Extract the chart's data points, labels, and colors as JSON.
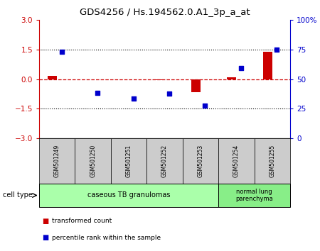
{
  "title": "GDS4256 / Hs.194562.0.A1_3p_a_at",
  "samples": [
    "GSM501249",
    "GSM501250",
    "GSM501251",
    "GSM501252",
    "GSM501253",
    "GSM501254",
    "GSM501255"
  ],
  "transformed_count": [
    0.15,
    0.0,
    0.0,
    -0.05,
    -0.65,
    0.1,
    1.4
  ],
  "percentile_rank": [
    1.4,
    -0.7,
    -1.0,
    -0.75,
    -1.35,
    0.55,
    1.48
  ],
  "red_color": "#cc0000",
  "blue_color": "#0000cc",
  "bar_width": 0.25,
  "ylim_left": [
    -3,
    3
  ],
  "yticks_left": [
    -3,
    -1.5,
    0,
    1.5,
    3
  ],
  "right_yticks_pos": [
    -3,
    -1.5,
    0,
    1.5,
    3
  ],
  "right_yticks_labels": [
    "0",
    "25",
    "50",
    "75",
    "100%"
  ],
  "group1_label": "caseous TB granulomas",
  "group2_label": "normal lung\nparenchyma",
  "group1_indices": [
    0,
    1,
    2,
    3,
    4
  ],
  "group2_indices": [
    5,
    6
  ],
  "cell_type_label": "cell type",
  "legend_red": "transformed count",
  "legend_blue": "percentile rank within the sample",
  "group1_bg": "#aaffaa",
  "group2_bg": "#88ee88",
  "sample_box_color": "#cccccc"
}
